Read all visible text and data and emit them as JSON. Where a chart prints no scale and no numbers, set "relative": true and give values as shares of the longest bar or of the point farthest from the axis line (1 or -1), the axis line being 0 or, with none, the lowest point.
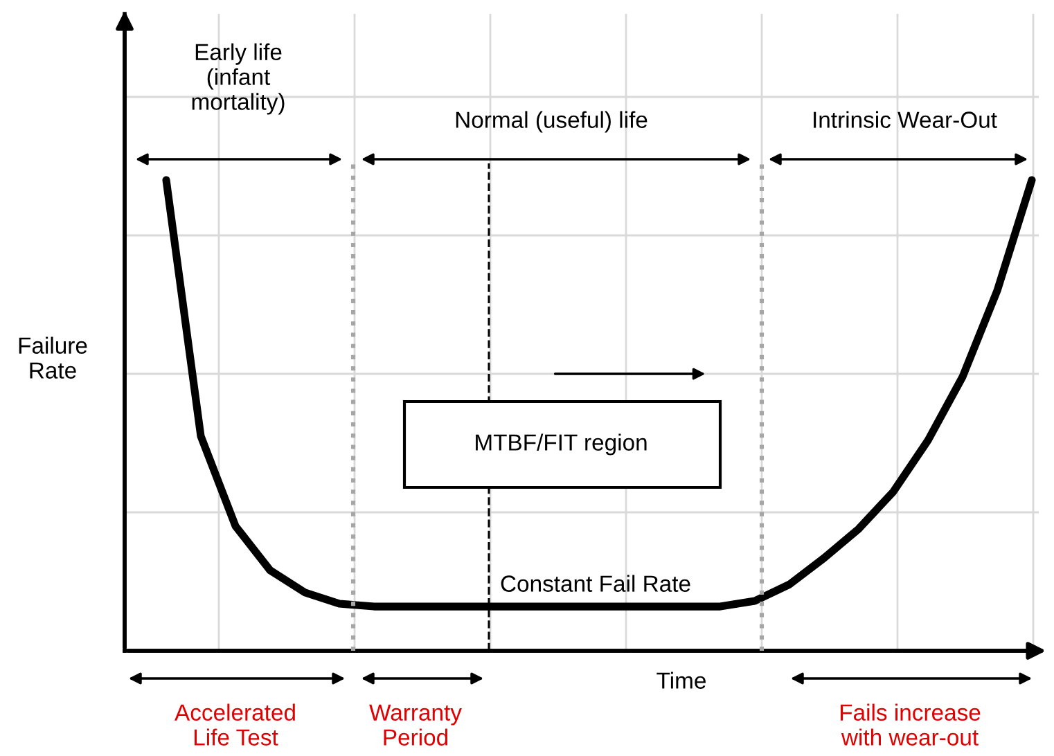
{
  "chart_data": {
    "type": "line",
    "relative": true,
    "xlabel": "Time",
    "ylabel": "Failure\nRate",
    "color": "#000000",
    "grid": true,
    "tick_labels": false,
    "categories": [
      null,
      null,
      null,
      null,
      null,
      null,
      null,
      null,
      null,
      null,
      null,
      null,
      null,
      null,
      null,
      null,
      null,
      null,
      null,
      null,
      null,
      null,
      null,
      null,
      null,
      null
    ],
    "values": [
      1.0,
      0.456,
      0.265,
      0.171,
      0.124,
      0.1,
      0.094,
      0.094,
      0.094,
      0.094,
      0.094,
      0.094,
      0.094,
      0.094,
      0.094,
      0.094,
      0.094,
      0.106,
      0.141,
      0.197,
      0.259,
      0.338,
      0.447,
      0.582,
      0.765,
      1.0
    ],
    "annotations": [
      "Early life\n(infant\nmortality)",
      "Normal (useful) life",
      "Intrinsic Wear-Out",
      "MTBF/FIT region",
      "Constant Fail Rate",
      "Accelerated\nLife Test",
      "Warranty\nPeriod",
      "Fails increase\nwith wear-out"
    ]
  }
}
